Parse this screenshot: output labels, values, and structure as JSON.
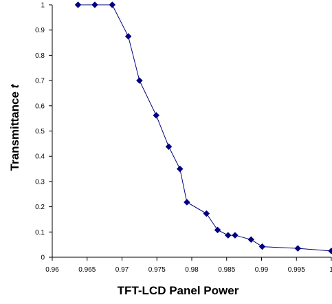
{
  "chart_data": {
    "type": "line",
    "title": "",
    "xlabel": "TFT-LCD Panel Power",
    "ylabel": "Transmittance t",
    "xlim": [
      0.96,
      1.0
    ],
    "ylim": [
      0,
      1
    ],
    "x_ticks": [
      "0.96",
      "0.965",
      "0.97",
      "0.975",
      "0.98",
      "0.985",
      "0.99",
      "0.995",
      "1"
    ],
    "y_ticks": [
      "0",
      "0.1",
      "0.2",
      "0.3",
      "0.4",
      "0.5",
      "0.6",
      "0.7",
      "0.8",
      "0.9",
      "1"
    ],
    "grid": false,
    "legend": "none",
    "marker": "diamond",
    "color": "#000080",
    "series": [
      {
        "x": [
          0.9637,
          0.9661,
          0.9686,
          0.9709,
          0.9725,
          0.9749,
          0.9767,
          0.9783,
          0.9793,
          0.9821,
          0.9837,
          0.9852,
          0.9862,
          0.9885,
          0.9901,
          0.9952,
          1.0
        ],
        "y": [
          1.0,
          1.0,
          1.0,
          0.875,
          0.7,
          0.562,
          0.438,
          0.35,
          0.218,
          0.173,
          0.108,
          0.087,
          0.087,
          0.07,
          0.042,
          0.035,
          0.025
        ]
      }
    ]
  }
}
